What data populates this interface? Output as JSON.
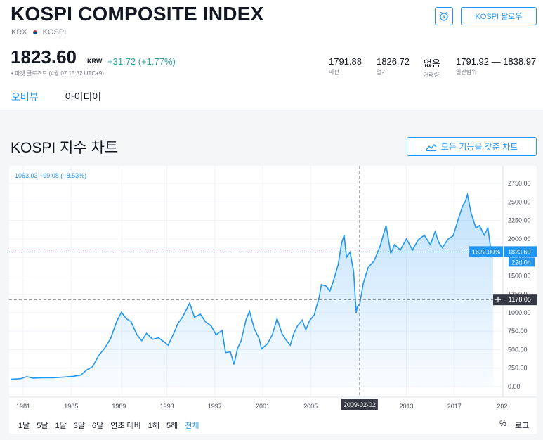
{
  "header": {
    "title": "KOSPI COMPOSITE INDEX",
    "exchange": "KRX",
    "symbol": "KOSPI",
    "follow_label": "KOSPI 팔로우",
    "alarm_icon": "alarm-clock-icon"
  },
  "quote": {
    "price": "1823.60",
    "currency": "KRW",
    "change": "+31.72 (+1.77%)",
    "market_status": "• 마켓 클로즈드 (4월 07 15:32 UTC+9)",
    "stats": [
      {
        "value": "1791.88",
        "label": "이전"
      },
      {
        "value": "1826.72",
        "label": "열기"
      },
      {
        "value": "없음",
        "label": "거래량"
      },
      {
        "value": "1791.92 — 1838.97",
        "label": "일간범위"
      }
    ]
  },
  "tabs": [
    {
      "label": "오버뷰",
      "active": true
    },
    {
      "label": "아이디어",
      "active": false
    }
  ],
  "chart_section": {
    "title": "KOSPI 지수 차트",
    "full_button": "모든 기능을 갖춘 차트",
    "full_button_icon": "chart-line-icon"
  },
  "chart_data": {
    "type": "area",
    "series_color": "#2196f3",
    "annotation": "1063.03 −99.08 (−8.53%)",
    "x_ticks": [
      "1981",
      "1985",
      "1989",
      "1993",
      "1997",
      "2001",
      "2005",
      "2009-02-02",
      "2013",
      "2017",
      "202"
    ],
    "y_ticks": [
      "2750.00",
      "2500.00",
      "2250.00",
      "2000.00",
      "1750.00",
      "1500.00",
      "1250.00",
      "1000.00",
      "750.00",
      "500.00",
      "250.00",
      "0.00"
    ],
    "ylim": [
      -100,
      2860
    ],
    "xlim": [
      1980,
      2020.3
    ],
    "crosshair": {
      "date": "2009-02-02",
      "value_label": "1178.05",
      "x": 2009.09,
      "y": 1178.05
    },
    "last_price_label": "1823.60",
    "last_pct_label": "1622.00%",
    "countdown_label": "22d 0h",
    "last_value": 1823.6,
    "points": [
      [
        1980.0,
        100
      ],
      [
        1980.8,
        108
      ],
      [
        1981.3,
        135
      ],
      [
        1981.8,
        115
      ],
      [
        1982.5,
        120
      ],
      [
        1983.5,
        120
      ],
      [
        1984.5,
        130
      ],
      [
        1985.2,
        140
      ],
      [
        1985.8,
        155
      ],
      [
        1986.3,
        225
      ],
      [
        1986.8,
        270
      ],
      [
        1987.3,
        420
      ],
      [
        1987.8,
        520
      ],
      [
        1988.3,
        650
      ],
      [
        1988.8,
        880
      ],
      [
        1989.2,
        1005
      ],
      [
        1989.6,
        920
      ],
      [
        1990.0,
        880
      ],
      [
        1990.5,
        700
      ],
      [
        1990.9,
        620
      ],
      [
        1991.3,
        720
      ],
      [
        1991.8,
        640
      ],
      [
        1992.3,
        660
      ],
      [
        1992.8,
        600
      ],
      [
        1993.1,
        560
      ],
      [
        1993.6,
        730
      ],
      [
        1993.9,
        850
      ],
      [
        1994.3,
        940
      ],
      [
        1994.9,
        1130
      ],
      [
        1995.3,
        940
      ],
      [
        1995.8,
        980
      ],
      [
        1996.2,
        880
      ],
      [
        1996.7,
        820
      ],
      [
        1997.1,
        700
      ],
      [
        1997.6,
        760
      ],
      [
        1997.9,
        460
      ],
      [
        1998.3,
        470
      ],
      [
        1998.6,
        300
      ],
      [
        1998.9,
        520
      ],
      [
        1999.2,
        620
      ],
      [
        1999.6,
        900
      ],
      [
        1999.9,
        1020
      ],
      [
        2000.3,
        780
      ],
      [
        2000.7,
        650
      ],
      [
        2000.9,
        510
      ],
      [
        2001.4,
        580
      ],
      [
        2001.8,
        700
      ],
      [
        2002.2,
        920
      ],
      [
        2002.6,
        720
      ],
      [
        2002.9,
        640
      ],
      [
        2003.3,
        560
      ],
      [
        2003.6,
        720
      ],
      [
        2003.9,
        820
      ],
      [
        2004.3,
        900
      ],
      [
        2004.6,
        770
      ],
      [
        2004.9,
        890
      ],
      [
        2005.3,
        970
      ],
      [
        2005.7,
        1200
      ],
      [
        2005.9,
        1380
      ],
      [
        2006.3,
        1360
      ],
      [
        2006.6,
        1290
      ],
      [
        2006.9,
        1430
      ],
      [
        2007.3,
        1650
      ],
      [
        2007.6,
        1950
      ],
      [
        2007.8,
        2050
      ],
      [
        2008.0,
        1750
      ],
      [
        2008.3,
        1820
      ],
      [
        2008.6,
        1550
      ],
      [
        2008.8,
        1000
      ],
      [
        2008.9,
        1080
      ],
      [
        2009.1,
        1120
      ],
      [
        2009.4,
        1400
      ],
      [
        2009.8,
        1610
      ],
      [
        2010.3,
        1700
      ],
      [
        2010.8,
        1900
      ],
      [
        2011.3,
        2180
      ],
      [
        2011.7,
        1800
      ],
      [
        2012.0,
        1920
      ],
      [
        2012.5,
        1850
      ],
      [
        2013.0,
        2000
      ],
      [
        2013.5,
        1850
      ],
      [
        2014.0,
        1990
      ],
      [
        2014.5,
        2050
      ],
      [
        2015.0,
        1920
      ],
      [
        2015.4,
        2100
      ],
      [
        2015.7,
        1950
      ],
      [
        2016.0,
        1880
      ],
      [
        2016.5,
        2000
      ],
      [
        2016.9,
        2040
      ],
      [
        2017.3,
        2250
      ],
      [
        2017.7,
        2450
      ],
      [
        2017.9,
        2500
      ],
      [
        2018.1,
        2600
      ],
      [
        2018.4,
        2350
      ],
      [
        2018.8,
        2150
      ],
      [
        2019.1,
        2180
      ],
      [
        2019.5,
        2050
      ],
      [
        2019.8,
        2150
      ],
      [
        2020.1,
        1800
      ],
      [
        2020.25,
        1823.6
      ]
    ]
  },
  "ranges": {
    "items": [
      "1날",
      "5날",
      "1달",
      "3달",
      "6달",
      "연초 대비",
      "1해",
      "5해",
      "전체"
    ],
    "active_index": 8
  },
  "options": {
    "percent": "%",
    "log": "로그"
  }
}
